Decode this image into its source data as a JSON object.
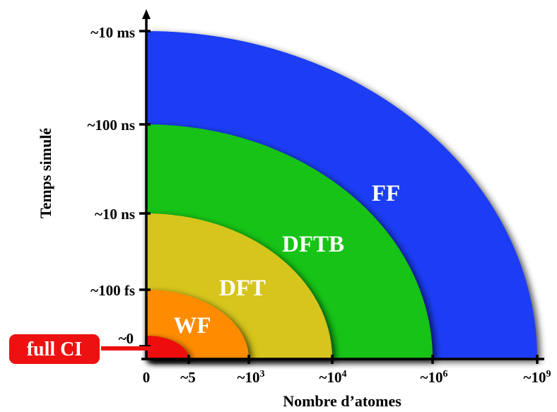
{
  "colors": {
    "ff": "#1a3cf5",
    "dftb": "#12c312",
    "dft": "#d6c51a",
    "wf": "#ff8c00",
    "fullci": "#ee1111",
    "axis": "#000000",
    "background": "#ffffff"
  },
  "y_axis": {
    "title": "Temps simulé",
    "ticks": [
      "~10 ms",
      "~100 ns",
      "~10 ns",
      "~100 fs",
      "~0"
    ]
  },
  "x_axis": {
    "title": "Nombre d’atomes",
    "ticks": [
      {
        "base": "0",
        "sup": ""
      },
      {
        "base": "~5",
        "sup": ""
      },
      {
        "base": "~10",
        "sup": "3"
      },
      {
        "base": "~10",
        "sup": "4"
      },
      {
        "base": "~10",
        "sup": "6"
      },
      {
        "base": "~10",
        "sup": "9"
      }
    ]
  },
  "regions": [
    {
      "id": "ff",
      "label": "FF"
    },
    {
      "id": "dftb",
      "label": "DFTB"
    },
    {
      "id": "dft",
      "label": "DFT"
    },
    {
      "id": "wf",
      "label": "WF"
    },
    {
      "id": "fullci",
      "label": "full CI"
    }
  ]
}
